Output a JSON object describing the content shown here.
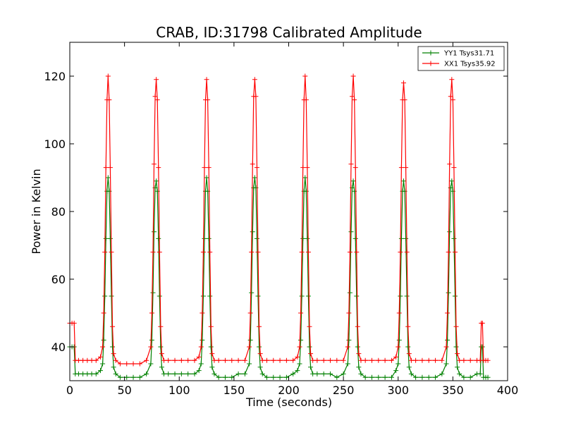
{
  "chart_data": {
    "type": "line",
    "title": "CRAB, ID:31798 Calibrated Amplitude",
    "xlabel": "Time (seconds)",
    "ylabel": "Power in Kelvin",
    "xlim": [
      0,
      400
    ],
    "ylim": [
      30,
      130
    ],
    "xticks": [
      0,
      50,
      100,
      150,
      200,
      250,
      300,
      350,
      400
    ],
    "yticks": [
      40,
      60,
      80,
      100,
      120
    ],
    "grid": false,
    "legend_position": "top-right",
    "series": [
      {
        "name": "YY1 Tsys31.71",
        "color": "#008000",
        "marker": "+",
        "x": [
          0,
          2,
          4,
          5,
          8,
          12,
          16,
          20,
          24,
          28,
          30,
          31,
          32,
          33,
          34,
          35,
          36,
          37,
          38,
          39,
          40,
          42,
          46,
          52,
          58,
          64,
          70,
          74,
          75,
          76,
          77,
          78,
          79,
          80,
          81,
          82,
          83,
          84,
          86,
          90,
          96,
          102,
          108,
          114,
          118,
          120,
          121,
          122,
          123,
          124,
          125,
          126,
          127,
          128,
          129,
          130,
          132,
          136,
          142,
          148,
          154,
          160,
          164,
          165,
          166,
          167,
          168,
          169,
          170,
          171,
          172,
          173,
          174,
          176,
          180,
          186,
          192,
          198,
          204,
          208,
          210,
          211,
          212,
          213,
          214,
          215,
          216,
          217,
          218,
          219,
          220,
          222,
          226,
          232,
          238,
          244,
          250,
          254,
          255,
          256,
          257,
          258,
          259,
          260,
          261,
          262,
          263,
          264,
          266,
          270,
          276,
          282,
          288,
          294,
          298,
          300,
          301,
          302,
          303,
          304,
          305,
          306,
          307,
          308,
          309,
          310,
          312,
          316,
          322,
          328,
          334,
          340,
          344,
          345,
          346,
          347,
          348,
          349,
          350,
          351,
          352,
          353,
          354,
          356,
          360,
          366,
          372,
          375,
          376,
          377,
          378,
          380,
          382
        ],
        "y": [
          40,
          40,
          40,
          32,
          32,
          32,
          32,
          32,
          32,
          33,
          35,
          42,
          55,
          72,
          86,
          90,
          86,
          72,
          55,
          40,
          34,
          32,
          31,
          31,
          31,
          31,
          32,
          35,
          42,
          56,
          74,
          87,
          89,
          86,
          72,
          55,
          40,
          34,
          32,
          32,
          32,
          32,
          32,
          32,
          33,
          35,
          42,
          55,
          72,
          86,
          90,
          86,
          72,
          55,
          40,
          34,
          32,
          31,
          31,
          31,
          32,
          32,
          35,
          42,
          56,
          74,
          87,
          90,
          87,
          72,
          55,
          40,
          34,
          32,
          31,
          31,
          31,
          31,
          32,
          33,
          35,
          42,
          55,
          72,
          86,
          90,
          86,
          72,
          55,
          40,
          34,
          32,
          32,
          32,
          32,
          31,
          32,
          35,
          42,
          56,
          74,
          87,
          89,
          86,
          72,
          55,
          40,
          34,
          32,
          31,
          31,
          31,
          31,
          31,
          33,
          35,
          42,
          55,
          72,
          86,
          89,
          86,
          72,
          55,
          40,
          34,
          32,
          31,
          31,
          31,
          31,
          32,
          35,
          42,
          56,
          74,
          87,
          89,
          86,
          72,
          55,
          40,
          34,
          32,
          31,
          31,
          32,
          32,
          40,
          40,
          31,
          31,
          31
        ]
      },
      {
        "name": "XX1 Tsys35.92",
        "color": "#ff0000",
        "marker": "+",
        "x": [
          0,
          2,
          4,
          5,
          8,
          12,
          16,
          20,
          24,
          28,
          30,
          31,
          32,
          33,
          34,
          35,
          36,
          37,
          38,
          39,
          40,
          42,
          46,
          52,
          58,
          64,
          70,
          74,
          75,
          76,
          77,
          78,
          79,
          80,
          81,
          82,
          83,
          84,
          86,
          90,
          96,
          102,
          108,
          114,
          118,
          120,
          121,
          122,
          123,
          124,
          125,
          126,
          127,
          128,
          129,
          130,
          132,
          136,
          142,
          148,
          154,
          160,
          164,
          165,
          166,
          167,
          168,
          169,
          170,
          171,
          172,
          173,
          174,
          176,
          180,
          186,
          192,
          198,
          204,
          208,
          210,
          211,
          212,
          213,
          214,
          215,
          216,
          217,
          218,
          219,
          220,
          222,
          226,
          232,
          238,
          244,
          250,
          254,
          255,
          256,
          257,
          258,
          259,
          260,
          261,
          262,
          263,
          264,
          266,
          270,
          276,
          282,
          288,
          294,
          298,
          300,
          301,
          302,
          303,
          304,
          305,
          306,
          307,
          308,
          309,
          310,
          312,
          316,
          322,
          328,
          334,
          340,
          344,
          345,
          346,
          347,
          348,
          349,
          350,
          351,
          352,
          353,
          354,
          356,
          360,
          366,
          372,
          375,
          376,
          377,
          378,
          380,
          382
        ],
        "y": [
          47,
          47,
          47,
          36,
          36,
          36,
          36,
          36,
          36,
          37,
          40,
          50,
          68,
          93,
          113,
          120,
          113,
          93,
          68,
          46,
          38,
          36,
          35,
          35,
          35,
          35,
          36,
          40,
          50,
          68,
          94,
          114,
          119,
          113,
          93,
          68,
          46,
          38,
          36,
          36,
          36,
          36,
          36,
          36,
          37,
          40,
          50,
          68,
          93,
          113,
          119,
          113,
          93,
          68,
          46,
          38,
          36,
          36,
          36,
          36,
          36,
          36,
          40,
          50,
          68,
          94,
          114,
          119,
          114,
          93,
          68,
          46,
          38,
          36,
          36,
          36,
          36,
          36,
          36,
          37,
          40,
          50,
          68,
          93,
          113,
          120,
          113,
          93,
          68,
          46,
          38,
          36,
          36,
          36,
          36,
          36,
          36,
          40,
          50,
          68,
          94,
          114,
          120,
          113,
          93,
          68,
          46,
          38,
          36,
          36,
          36,
          36,
          36,
          36,
          37,
          40,
          50,
          68,
          93,
          113,
          118,
          113,
          93,
          68,
          46,
          38,
          36,
          36,
          36,
          36,
          36,
          36,
          40,
          50,
          68,
          94,
          114,
          119,
          113,
          93,
          68,
          46,
          38,
          36,
          36,
          36,
          36,
          36,
          47,
          47,
          36,
          36,
          36
        ]
      }
    ]
  }
}
